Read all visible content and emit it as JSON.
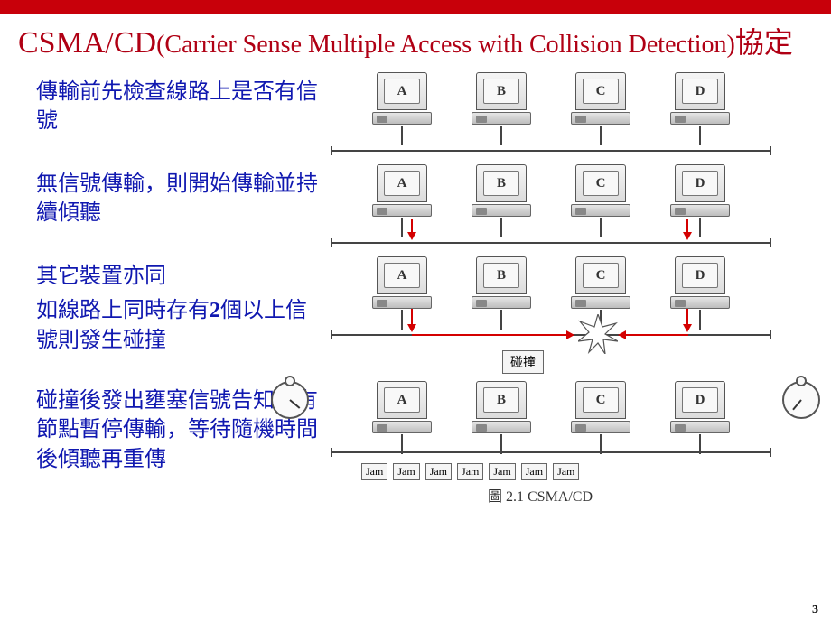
{
  "colors": {
    "top_bar": "#c8000a",
    "title": "#b00014",
    "body_text": "#1018b0",
    "bus_line": "#444444",
    "arrow": "#d40000",
    "box_border": "#666666",
    "box_bg": "#f5f5f5"
  },
  "title": {
    "main": "CSMA/CD",
    "sub": "(Carrier Sense Multiple Access with Collision Detection)",
    "suffix": "協定"
  },
  "page_number": "3",
  "pcs": [
    "A",
    "B",
    "C",
    "D"
  ],
  "steps": [
    {
      "text": "傳輸前先檢查線路上是否有信號",
      "type": "idle"
    },
    {
      "text": "無信號傳輸，則開始傳輸並持續傾聽",
      "type": "send",
      "senders": [
        0,
        3
      ]
    },
    {
      "text_a": "其它裝置亦同",
      "text_b": "如線路上同時存有2個以上信號則發生碰撞",
      "type": "collision",
      "senders": [
        0,
        3
      ],
      "collision_label": "碰撞"
    },
    {
      "text": "碰撞後發出壅塞信號告知所有節點暫停傳輸，等待隨機時間後傾聽再重傳",
      "type": "jam",
      "jam_label": "Jam",
      "jam_count": 7
    }
  ],
  "caption": "圖 2.1 CSMA/CD"
}
